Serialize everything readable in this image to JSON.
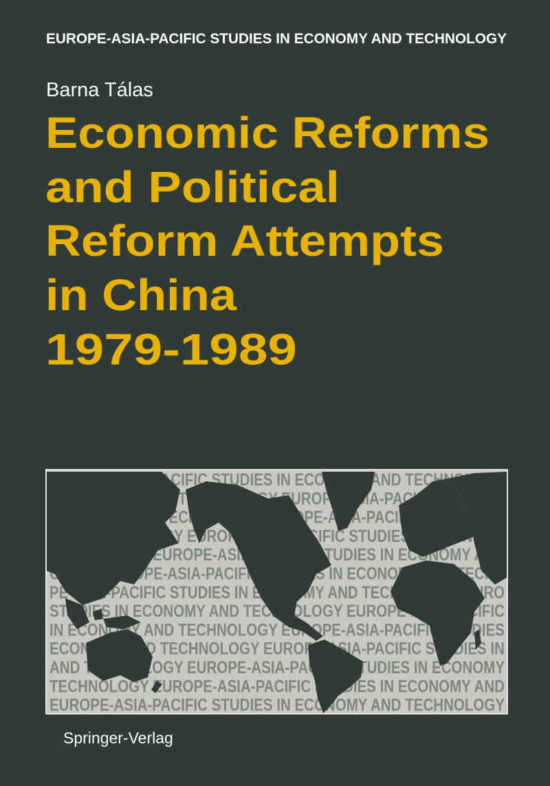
{
  "cover": {
    "series": "EUROPE-ASIA-PACIFIC STUDIES IN ECONOMY AND TECHNOLOGY",
    "author": "Barna Tálas",
    "title_lines": [
      "Economic Reforms",
      "and Political",
      "Reform Attempts",
      "in China",
      "1979-1989"
    ],
    "publisher": "Springer-Verlag",
    "colors": {
      "background": "#303a37",
      "title": "#e8b200",
      "text": "#ffffff",
      "map_panel": "#c9c9c1",
      "pattern_text": "#7d8682"
    }
  },
  "map_panel": {
    "image": "world-map-over-series-name-pattern",
    "pattern_lines": [
      "EUROPE-ASIA-PACIFIC STUDIES IN ECONOMY AND TECHNOLOGY",
      "IN ECONOMY AND TECHNOLOGY EUROPE-ASIA-PACIFIC STUDIES",
      "ECONOMY AND TECHNOLOGY EUROPE-ASIA-PACIFIC STUDIES IN",
      "AND TECHNOLOGY EUROPE-ASIA-PACIFIC STUDIES IN ECONOMY",
      "TECHNOLOGY EUROPE-ASIA-PACIFIC STUDIES IN ECONOMY AND",
      "OLOGY EUROPE-ASIA-PACIFIC STUDIES IN ECONOMY AND TECHN",
      "PE-ASIA-PACIFIC STUDIES IN ECONOMY AND TECHNOLOGY EURO",
      "STUDIES IN ECONOMY AND TECHNOLOGY EUROPE-ASIA-PACIFIC",
      "IN ECONOMY AND TECHNOLOGY EUROPE-ASIA-PACIFIC STUDIES",
      "ECONOMY AND TECHNOLOGY EUROPE-ASIA-PACIFIC STUDIES IN",
      "AND TECHNOLOGY EUROPE-ASIA-PACIFIC STUDIES IN ECONOMY",
      "TECHNOLOGY EUROPE-ASIA-PACIFIC STUDIES IN ECONOMY AND",
      "EUROPE-ASIA-PACIFIC STUDIES IN ECONOMY AND TECHNOLOGY"
    ]
  }
}
